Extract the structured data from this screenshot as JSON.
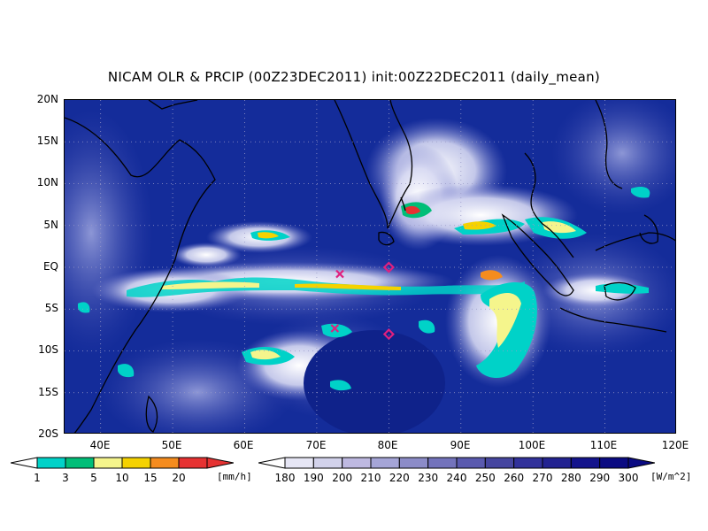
{
  "title": "NICAM OLR & PRCIP (00Z23DEC2011) init:00Z22DEC2011 (daily_mean)",
  "map": {
    "lon_range": [
      35,
      120
    ],
    "lat_range": [
      -20,
      20
    ],
    "lat_labels": [
      "20N",
      "15N",
      "10N",
      "5N",
      "EQ",
      "5S",
      "10S",
      "15S",
      "20S"
    ],
    "lon_labels": [
      "40E",
      "50E",
      "60E",
      "70E",
      "80E",
      "90E",
      "100E",
      "110E",
      "120E"
    ],
    "markers": [
      {
        "type": "x",
        "label": "",
        "lon": 73.2,
        "lat": -0.8
      },
      {
        "type": "x",
        "label": "",
        "lon": 72.5,
        "lat": -7.3
      },
      {
        "type": "diamond",
        "label": "",
        "lon": 80,
        "lat": 0
      },
      {
        "type": "diamond",
        "label": "",
        "lon": 80,
        "lat": -8
      }
    ],
    "colors": {
      "ocean_deep": "#142c9a",
      "cloud_white": "#ffffff",
      "marker": "#e0207f"
    }
  },
  "precip_colorbar": {
    "ticks": [
      "1",
      "3",
      "5",
      "10",
      "15",
      "20"
    ],
    "unit": "[mm/h]",
    "colors": [
      "#00d2c8",
      "#00be78",
      "#f5f58c",
      "#f5d200",
      "#f58c1e",
      "#e63232"
    ]
  },
  "olr_colorbar": {
    "ticks": [
      "180",
      "190",
      "200",
      "210",
      "220",
      "230",
      "240",
      "250",
      "260",
      "270",
      "280",
      "290",
      "300"
    ],
    "unit": "[W/m^2]",
    "colors": [
      "#e6e6f5",
      "#d2d2eb",
      "#beb9e1",
      "#a5a5d7",
      "#8c8cc8",
      "#7373bc",
      "#5a5aaf",
      "#4646a0",
      "#32329b",
      "#232391",
      "#14148c",
      "#0a0a82"
    ]
  }
}
